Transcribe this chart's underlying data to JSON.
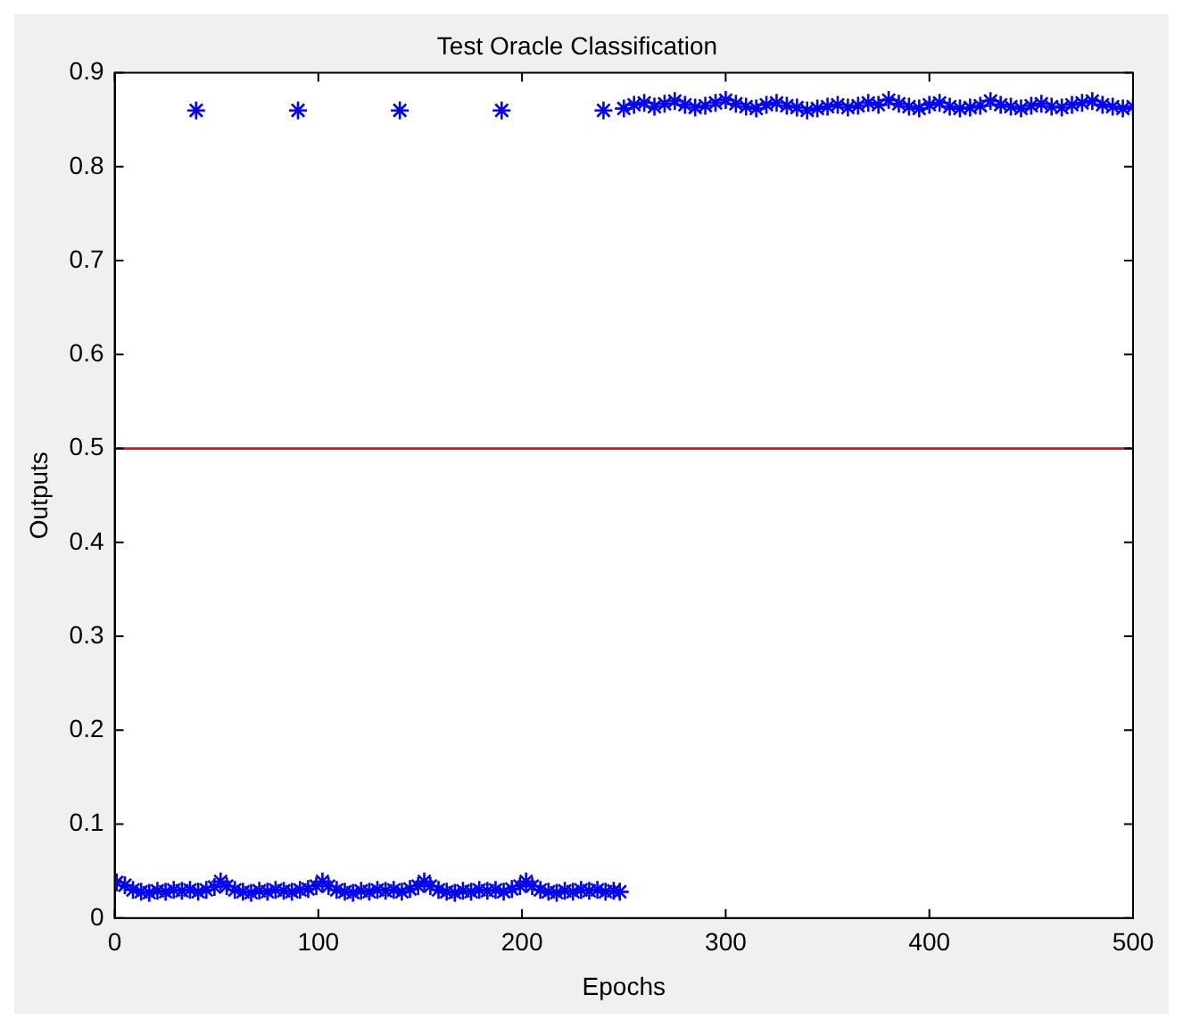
{
  "chart_data": {
    "type": "scatter",
    "title": "Test Oracle Classification",
    "xlabel": "Epochs",
    "ylabel": "Outputs",
    "xlim": [
      0,
      500
    ],
    "xticks": [
      0,
      100,
      200,
      300,
      400,
      500
    ],
    "ylim": [
      0,
      0.9
    ],
    "yticks": [
      0,
      0.1,
      0.2,
      0.3,
      0.4,
      0.5,
      0.6,
      0.7,
      0.8,
      0.9
    ],
    "grid": false,
    "legend": false,
    "marker": "cross",
    "ref_lines": [
      {
        "axis": "y",
        "value": 0.5,
        "color": "#ff0000"
      }
    ],
    "series": [
      {
        "color": "#0000ff",
        "x": [
          1,
          5,
          9,
          13,
          17,
          21,
          25,
          29,
          33,
          37,
          40,
          41,
          45,
          49,
          52,
          55,
          59,
          63,
          67,
          71,
          75,
          79,
          83,
          87,
          90,
          91,
          95,
          99,
          102,
          105,
          109,
          113,
          117,
          121,
          125,
          129,
          133,
          137,
          140,
          141,
          145,
          149,
          152,
          155,
          159,
          163,
          167,
          171,
          175,
          179,
          183,
          187,
          190,
          191,
          195,
          199,
          202,
          205,
          209,
          213,
          217,
          221,
          225,
          229,
          233,
          237,
          240,
          241,
          245,
          248,
          250,
          255,
          260,
          265,
          270,
          275,
          280,
          285,
          290,
          295,
          300,
          305,
          310,
          315,
          320,
          325,
          330,
          335,
          340,
          345,
          350,
          355,
          360,
          365,
          370,
          375,
          380,
          385,
          390,
          395,
          400,
          405,
          410,
          415,
          420,
          425,
          430,
          435,
          440,
          445,
          450,
          455,
          460,
          465,
          470,
          475,
          480,
          485,
          490,
          495,
          500
        ],
        "values": [
          0.038,
          0.035,
          0.03,
          0.028,
          0.027,
          0.029,
          0.028,
          0.03,
          0.029,
          0.03,
          0.86,
          0.028,
          0.03,
          0.033,
          0.039,
          0.034,
          0.03,
          0.028,
          0.027,
          0.029,
          0.028,
          0.03,
          0.029,
          0.028,
          0.86,
          0.03,
          0.031,
          0.034,
          0.039,
          0.034,
          0.03,
          0.028,
          0.027,
          0.029,
          0.028,
          0.03,
          0.029,
          0.03,
          0.86,
          0.028,
          0.031,
          0.034,
          0.039,
          0.034,
          0.03,
          0.028,
          0.027,
          0.029,
          0.028,
          0.03,
          0.029,
          0.03,
          0.86,
          0.028,
          0.031,
          0.034,
          0.039,
          0.034,
          0.03,
          0.028,
          0.027,
          0.029,
          0.028,
          0.03,
          0.029,
          0.03,
          0.86,
          0.028,
          0.029,
          0.028,
          0.862,
          0.866,
          0.868,
          0.864,
          0.867,
          0.87,
          0.866,
          0.863,
          0.865,
          0.868,
          0.871,
          0.867,
          0.864,
          0.862,
          0.866,
          0.868,
          0.865,
          0.863,
          0.86,
          0.862,
          0.864,
          0.866,
          0.863,
          0.865,
          0.868,
          0.866,
          0.871,
          0.867,
          0.864,
          0.862,
          0.866,
          0.868,
          0.864,
          0.862,
          0.863,
          0.865,
          0.87,
          0.866,
          0.864,
          0.862,
          0.865,
          0.867,
          0.864,
          0.863,
          0.866,
          0.868,
          0.87,
          0.866,
          0.864,
          0.862,
          0.864
        ]
      }
    ]
  }
}
